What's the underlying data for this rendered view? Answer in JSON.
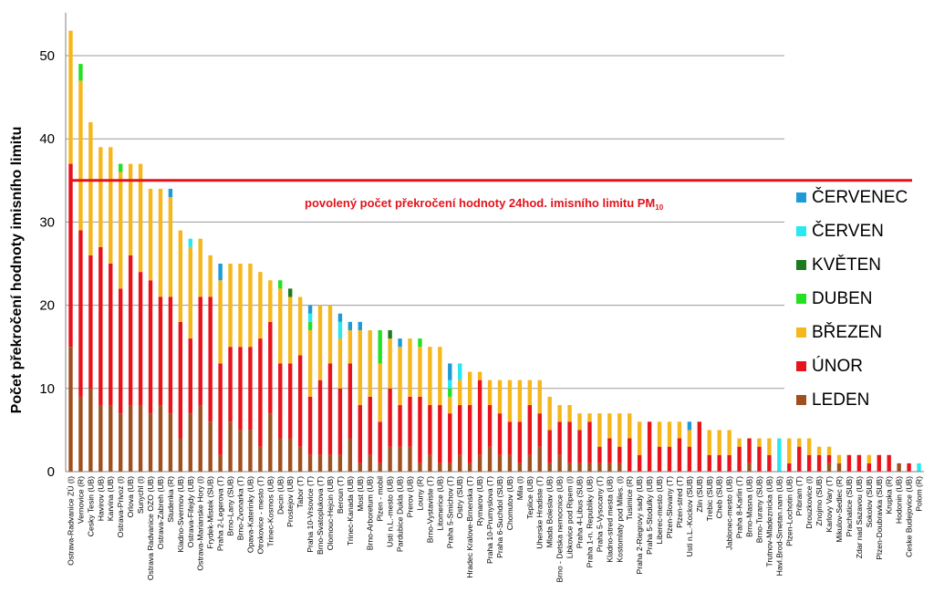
{
  "chart_data": {
    "type": "bar",
    "stacked": true,
    "ylabel": "Počet překročení hodnoty imisního limitu",
    "xlabel": "",
    "ylim": [
      0,
      55
    ],
    "yticks": [
      0,
      10,
      20,
      30,
      40,
      50
    ],
    "grid": true,
    "legend_position": "right",
    "limit": {
      "value": 35,
      "label_main": "povolený počet překročení hodnoty 24hod. imisního limitu PM",
      "label_sub": "10"
    },
    "series": [
      {
        "name": "LEDEN",
        "color": "#a0501e"
      },
      {
        "name": "ÚNOR",
        "color": "#e8141c"
      },
      {
        "name": "BŘEZEN",
        "color": "#f5b71c"
      },
      {
        "name": "DUBEN",
        "color": "#22e022"
      },
      {
        "name": "KVĚTEN",
        "color": "#1d7a1d"
      },
      {
        "name": "ČERVEN",
        "color": "#28e8f0"
      },
      {
        "name": "ČERVENEC",
        "color": "#1e9ad6"
      }
    ],
    "legend_order": [
      "ČERVENEC",
      "ČERVEN",
      "KVĚTEN",
      "DUBEN",
      "BŘEZEN",
      "ÚNOR",
      "LEDEN"
    ],
    "categories": [
      "Ostrava-Radvanice ZÚ (I)",
      "Vernovice (R)",
      "Cesky Tesin (UB)",
      "Havirov (UB)",
      "Karvina (UB)",
      "Ostrava-Privoz (I)",
      "Orlova (UB)",
      "Sunychl (I)",
      "Ostrava Radvanice OZO (UB)",
      "Ostrava-Zabreh (UB)",
      "Studenka (R)",
      "Kladno-Svermov (UB)",
      "Ostrava-Fifejdy (UB)",
      "Ostrava-Marianske Hory (I)",
      "Frydek-Mistek (SUB)",
      "Praha 2-Legerova (T)",
      "Brno-Lany (SUB)",
      "Brno-Zvonarka (T)",
      "Opava-Katerinky (UB)",
      "Otrokovice - mesto (T)",
      "Trinec-Kosmos (UB)",
      "Decin (UB)",
      "Prostejov (UB)",
      "Tabor (T)",
      "Praha 10-Vrsovice (T)",
      "Brno-Svatoplukova (T)",
      "Olomouc-Hejcin (UB)",
      "Beroun (T)",
      "Trinec-Kanada (UB)",
      "Most (UB)",
      "Brno-Arboretum (UB)",
      "Plzen - mobil",
      "Usti n.L.-mesto (UB)",
      "Pardubice Dukla (UB)",
      "Prerov (UB)",
      "Louny (R)",
      "Brno-Vystaviste (T)",
      "Litomerice (UB)",
      "Praha 5-Smichov (T)",
      "Ostry (SUB)",
      "Hradec Kralove-Brnenska (T)",
      "Rymarov (UB)",
      "Praha 10-Prumyslova (T)",
      "Praha 6-Suchdol (SUB)",
      "Chomutov (UB)",
      "Mila (I)",
      "Teplice (UB)",
      "Uherske Hradiste (T)",
      "Mlada Boleslav (UB)",
      "Brno - Detska nemocnice (UB)",
      "Libkovice pod Ripem (I)",
      "Praha 4-Libus (SUB)",
      "Praha 1-n. Republiky (UB)",
      "Praha 5-Vysocany (T)",
      "Kladno-stred mesta (UB)",
      "Kostomlaty pod Miles. (I)",
      "Tusimice (R)",
      "Praha 2-Riegrovy sady (UB)",
      "Praha 5-Stodulky (UB)",
      "Liberec-mesto (UB)",
      "Plzen-Slovany (T)",
      "Plzen-stred (T)",
      "Usti n.L.-Kockov (SUB)",
      "Zlin (SUB)",
      "Trebic (SUB)",
      "Cheb (SUB)",
      "Jablonec-mesto (UB)",
      "Praha 8-Karlin (T)",
      "Brno-Masna (UB)",
      "Brno-Turany (SUB)",
      "Trutnov-Mladeznicka (UB)",
      "Havl.Brod-Smetan.nam (UB)",
      "Plzen-Lochotin (UB)",
      "Pribram (T)",
      "Drouzkovice (I)",
      "Znojmo (SUB)",
      "Karlovy Vary (T)",
      "Mikulov-Sedlec (R)",
      "Prachatice (SUB)",
      "Zdar nad Sazavou (UB)",
      "Sokolov (SUB)",
      "Plzen-Doubravka (SUB)",
      "Krupka (R)",
      "Hodonin (UB)",
      "Ceske Budejovice (UB)",
      "Polom (R)"
    ],
    "data": [
      [
        15,
        22,
        16,
        0,
        0,
        0,
        0
      ],
      [
        9,
        20,
        18,
        2,
        0,
        0,
        0
      ],
      [
        10,
        16,
        16,
        0,
        0,
        0,
        0
      ],
      [
        8,
        19,
        12,
        0,
        0,
        0,
        0
      ],
      [
        8,
        17,
        14,
        0,
        0,
        0,
        0
      ],
      [
        7,
        15,
        14,
        1,
        0,
        0,
        0
      ],
      [
        8,
        18,
        11,
        0,
        0,
        0,
        0
      ],
      [
        8,
        16,
        13,
        0,
        0,
        0,
        0
      ],
      [
        7,
        16,
        11,
        0,
        0,
        0,
        0
      ],
      [
        8,
        13,
        13,
        0,
        0,
        0,
        0
      ],
      [
        7,
        14,
        12,
        0,
        0,
        0,
        1
      ],
      [
        4,
        14,
        11,
        0,
        0,
        0,
        0
      ],
      [
        7,
        9,
        11,
        0,
        0,
        1,
        0
      ],
      [
        8,
        13,
        7,
        0,
        0,
        0,
        0
      ],
      [
        6,
        15,
        5,
        0,
        0,
        0,
        0
      ],
      [
        2,
        11,
        10,
        0,
        0,
        0,
        2
      ],
      [
        6,
        9,
        10,
        0,
        0,
        0,
        0
      ],
      [
        5,
        10,
        10,
        0,
        0,
        0,
        0
      ],
      [
        5,
        10,
        10,
        0,
        0,
        0,
        0
      ],
      [
        3,
        13,
        8,
        0,
        0,
        0,
        0
      ],
      [
        7,
        11,
        5,
        0,
        0,
        0,
        0
      ],
      [
        4,
        9,
        9,
        1,
        0,
        0,
        0
      ],
      [
        4,
        9,
        8,
        0,
        1,
        0,
        0
      ],
      [
        3,
        11,
        7,
        0,
        0,
        0,
        0
      ],
      [
        2,
        7,
        8,
        1,
        0,
        1,
        1
      ],
      [
        2,
        9,
        9,
        0,
        0,
        0,
        0
      ],
      [
        2,
        11,
        7,
        0,
        0,
        0,
        0
      ],
      [
        2,
        8,
        6,
        0,
        0,
        2,
        1
      ],
      [
        4,
        9,
        4,
        0,
        0,
        0,
        1
      ],
      [
        1,
        7,
        9,
        0,
        0,
        0,
        1
      ],
      [
        2,
        7,
        8,
        0,
        0,
        0,
        0
      ],
      [
        1,
        5,
        7,
        4,
        0,
        0,
        0
      ],
      [
        3,
        7,
        6,
        0,
        1,
        0,
        0
      ],
      [
        3,
        5,
        7,
        0,
        0,
        0,
        1
      ],
      [
        3,
        6,
        7,
        0,
        0,
        0,
        0
      ],
      [
        1,
        8,
        6,
        1,
        0,
        0,
        0
      ],
      [
        2,
        6,
        7,
        0,
        0,
        0,
        0
      ],
      [
        1,
        7,
        7,
        0,
        0,
        0,
        0
      ],
      [
        1,
        6,
        2,
        1,
        0,
        1,
        2
      ],
      [
        2,
        6,
        3,
        0,
        0,
        2,
        0
      ],
      [
        1,
        7,
        4,
        0,
        0,
        0,
        0
      ],
      [
        2,
        9,
        1,
        0,
        0,
        0,
        0
      ],
      [
        3,
        5,
        3,
        0,
        0,
        0,
        0
      ],
      [
        2,
        5,
        4,
        0,
        0,
        0,
        0
      ],
      [
        2,
        4,
        5,
        0,
        0,
        0,
        0
      ],
      [
        1,
        5,
        5,
        0,
        0,
        0,
        0
      ],
      [
        2,
        6,
        3,
        0,
        0,
        0,
        0
      ],
      [
        3,
        4,
        4,
        0,
        0,
        0,
        0
      ],
      [
        1,
        4,
        4,
        0,
        0,
        0,
        0
      ],
      [
        2,
        4,
        2,
        0,
        0,
        0,
        0
      ],
      [
        1,
        5,
        2,
        0,
        0,
        0,
        0
      ],
      [
        1,
        4,
        2,
        0,
        0,
        0,
        0
      ],
      [
        1,
        5,
        1,
        0,
        0,
        0,
        0
      ],
      [
        1,
        2,
        4,
        0,
        0,
        0,
        0
      ],
      [
        1,
        3,
        3,
        0,
        0,
        0,
        0
      ],
      [
        1,
        2,
        4,
        0,
        0,
        0,
        0
      ],
      [
        0,
        4,
        3,
        0,
        0,
        0,
        0
      ],
      [
        0,
        2,
        4,
        0,
        0,
        0,
        0
      ],
      [
        0,
        6,
        0,
        0,
        0,
        0,
        0
      ],
      [
        0,
        3,
        3,
        0,
        0,
        0,
        0
      ],
      [
        0,
        3,
        3,
        0,
        0,
        0,
        0
      ],
      [
        0,
        4,
        2,
        0,
        0,
        0,
        0
      ],
      [
        0,
        3,
        2,
        0,
        0,
        0,
        1
      ],
      [
        0,
        6,
        0,
        0,
        0,
        0,
        0
      ],
      [
        0,
        2,
        3,
        0,
        0,
        0,
        0
      ],
      [
        0,
        2,
        3,
        0,
        0,
        0,
        0
      ],
      [
        0,
        2,
        3,
        0,
        0,
        0,
        0
      ],
      [
        0,
        3,
        1,
        0,
        0,
        0,
        0
      ],
      [
        1,
        3,
        0,
        0,
        0,
        0,
        0
      ],
      [
        0,
        3,
        1,
        0,
        0,
        0,
        0
      ],
      [
        0,
        2,
        2,
        0,
        0,
        0,
        0
      ],
      [
        0,
        0,
        0,
        0,
        0,
        4,
        0
      ],
      [
        0,
        1,
        3,
        0,
        0,
        0,
        0
      ],
      [
        0,
        3,
        1,
        0,
        0,
        0,
        0
      ],
      [
        0,
        2,
        2,
        0,
        0,
        0,
        0
      ],
      [
        0,
        2,
        1,
        0,
        0,
        0,
        0
      ],
      [
        1,
        1,
        1,
        0,
        0,
        0,
        0
      ],
      [
        1,
        0,
        1,
        0,
        0,
        0,
        0
      ],
      [
        0,
        2,
        0,
        0,
        0,
        0,
        0
      ],
      [
        0,
        2,
        0,
        0,
        0,
        0,
        0
      ],
      [
        0,
        1,
        1,
        0,
        0,
        0,
        0
      ],
      [
        0,
        2,
        0,
        0,
        0,
        0,
        0
      ],
      [
        0,
        2,
        0,
        0,
        0,
        0,
        0
      ],
      [
        1,
        0,
        0,
        0,
        0,
        0,
        0
      ],
      [
        0,
        1,
        0,
        0,
        0,
        0,
        0
      ],
      [
        0,
        0,
        0,
        0,
        0,
        1,
        0
      ]
    ]
  }
}
